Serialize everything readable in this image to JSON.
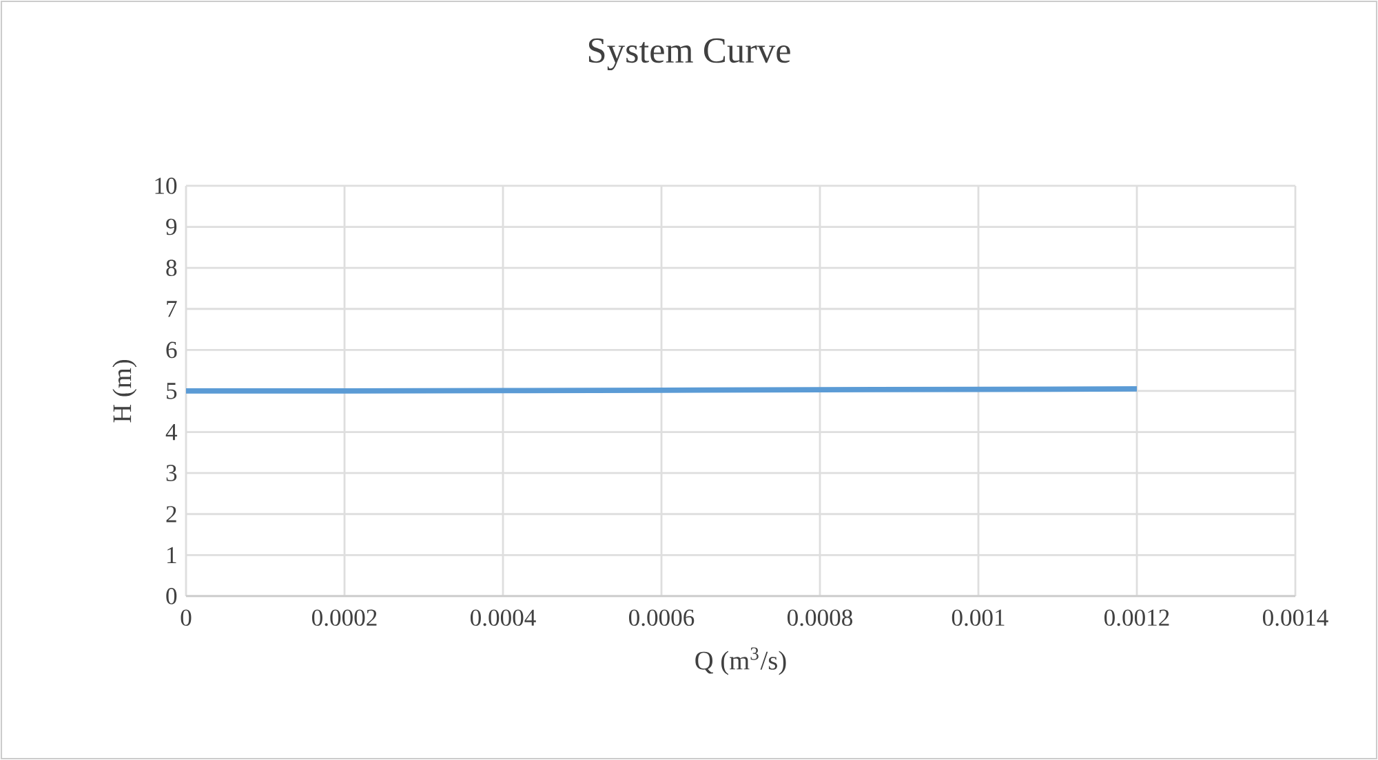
{
  "chart_data": {
    "type": "line",
    "title": "System Curve",
    "xlabel": "Q (m$^{3}$/s)",
    "ylabel": "H (m)",
    "x": [
      0,
      0.0002,
      0.0004,
      0.0006,
      0.0008,
      0.001,
      0.0012
    ],
    "series": [
      {
        "color": "#5b9bd5",
        "values": [
          5.0,
          5.0,
          5.01,
          5.02,
          5.03,
          5.04,
          5.05
        ]
      }
    ],
    "xlim": [
      0,
      0.0014
    ],
    "xticks": [
      0,
      0.0002,
      0.0004,
      0.0006,
      0.0008,
      0.001,
      0.0012,
      0.0014
    ],
    "ylim": [
      0,
      10
    ],
    "yticks": [
      0,
      1,
      2,
      3,
      4,
      5,
      6,
      7,
      8,
      9,
      10
    ],
    "grid": true,
    "legend": false,
    "marker": "none",
    "line_style": "solid"
  }
}
